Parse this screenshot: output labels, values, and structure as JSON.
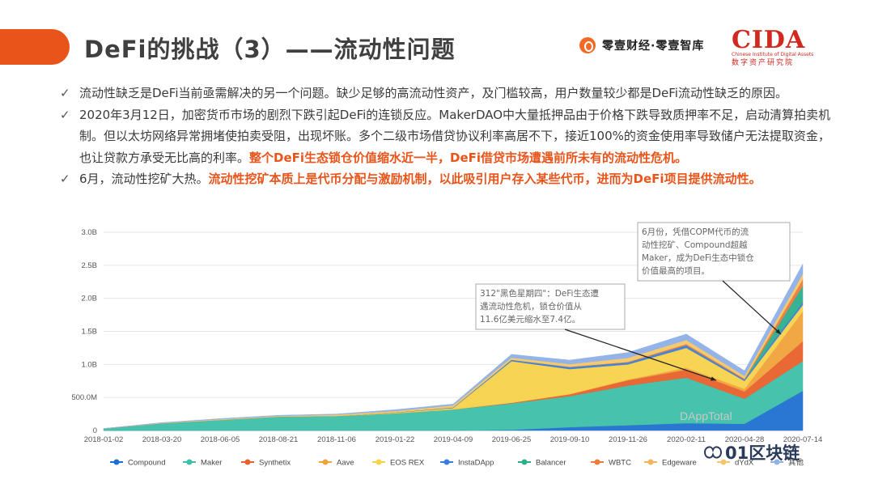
{
  "header": {
    "title": "DeFi的挑战（3）——流动性问题",
    "brand": "零壹财经·零壹智库",
    "cida": {
      "logo": "CIDA",
      "en": "Chinese Institute of Digital Assets",
      "cn": "数字资产研究院"
    }
  },
  "bullets": [
    {
      "mark": "✓",
      "text": "流动性缺乏是DeFi当前亟需解决的另一个问题。缺少足够的高流动性资产，及门槛较高，用户数量较少都是DeFi流动性缺乏的原因。",
      "highlight": ""
    },
    {
      "mark": "✓",
      "text": "2020年3月12日，加密货币市场的剧烈下跌引起DeFi的连锁反应。MakerDAO中大量抵押品由于价格下跌导致质押率不足，启动清算拍卖机制。但以太坊网络异常拥堵使拍卖受阻，出现坏账。多个二级市场借贷协议利率高居不下，接近100%的资金使用率导致储户无法提取资金，也让贷款方承受无比高的利率。",
      "highlight": "整个DeFi生态锁仓价值缩水近一半，DeFi借贷市场遭遇前所未有的流动性危机。"
    },
    {
      "mark": "✓",
      "text": "6月，流动性挖矿大热。",
      "highlight": "流动性挖矿本质上是代币分配与激励机制，以此吸引用户存入某些代币，进而为DeFi项目提供流动性。"
    }
  ],
  "chart_data": {
    "type": "area",
    "stacked": true,
    "x": [
      "2018-01-02",
      "2018-03-20",
      "2018-06-05",
      "2018-08-21",
      "2018-11-06",
      "2019-01-22",
      "2019-04-09",
      "2019-06-25",
      "2019-09-10",
      "2019-11-26",
      "2020-02-11",
      "2020-04-28",
      "2020-07-14"
    ],
    "ytick_labels": [
      "0",
      "500.0M",
      "1.0B",
      "1.5B",
      "2.0B",
      "2.5B",
      "3.0B"
    ],
    "ylim": [
      0,
      3000000000
    ],
    "grid": true,
    "legend_position": "bottom",
    "series": [
      {
        "name": "Compound",
        "color": "#1f6fd1",
        "values": [
          0,
          0,
          0,
          0,
          0,
          0,
          0,
          10000000,
          50000000,
          80000000,
          110000000,
          100000000,
          600000000
        ]
      },
      {
        "name": "Maker",
        "color": "#3ebfa8",
        "values": [
          30000000,
          110000000,
          160000000,
          210000000,
          220000000,
          260000000,
          320000000,
          400000000,
          470000000,
          600000000,
          690000000,
          380000000,
          450000000
        ]
      },
      {
        "name": "Synthetix",
        "color": "#e8622c",
        "values": [
          0,
          0,
          0,
          0,
          0,
          0,
          0,
          10000000,
          30000000,
          80000000,
          120000000,
          110000000,
          300000000
        ]
      },
      {
        "name": "Aave",
        "color": "#f0a33a",
        "values": [
          0,
          0,
          0,
          0,
          0,
          0,
          0,
          0,
          0,
          10000000,
          30000000,
          40000000,
          450000000
        ]
      },
      {
        "name": "EOS REX",
        "color": "#f7d24a",
        "values": [
          0,
          0,
          0,
          0,
          0,
          10000000,
          20000000,
          630000000,
          380000000,
          230000000,
          300000000,
          120000000,
          100000000
        ]
      },
      {
        "name": "InstaDApp",
        "color": "#3b7ddd",
        "values": [
          0,
          0,
          0,
          0,
          0,
          5000000,
          10000000,
          20000000,
          30000000,
          30000000,
          40000000,
          20000000,
          40000000
        ]
      },
      {
        "name": "Balancer",
        "color": "#2fae8e",
        "values": [
          0,
          0,
          0,
          0,
          0,
          0,
          0,
          0,
          0,
          0,
          0,
          0,
          250000000
        ]
      },
      {
        "name": "WBTC",
        "color": "#ee7b3a",
        "values": [
          0,
          0,
          0,
          0,
          0,
          0,
          0,
          2000000,
          5000000,
          10000000,
          20000000,
          15000000,
          100000000
        ]
      },
      {
        "name": "Edgeware",
        "color": "#f6b45c",
        "values": [
          0,
          0,
          0,
          0,
          0,
          0,
          0,
          0,
          0,
          0,
          0,
          0,
          0
        ]
      },
      {
        "name": "dYdX",
        "color": "#f4c86a",
        "values": [
          0,
          5000000,
          10000000,
          10000000,
          20000000,
          20000000,
          30000000,
          30000000,
          40000000,
          60000000,
          60000000,
          40000000,
          80000000
        ]
      },
      {
        "name": "其他",
        "color": "#8fb0e8",
        "values": [
          0,
          5000000,
          10000000,
          10000000,
          10000000,
          20000000,
          20000000,
          50000000,
          60000000,
          80000000,
          90000000,
          80000000,
          150000000
        ]
      }
    ],
    "annotations": [
      {
        "text_lines": [
          "312\"黑色星期四\"：DeFi生态遭",
          "遇流动性危机，锁仓价值从",
          "11.6亿美元缩水至7.4亿。"
        ],
        "points_to": "2020-03-12"
      },
      {
        "text_lines": [
          "6月份，凭借COPM代币的流",
          "动性挖矿、Compound超越",
          "Maker，成为DeFi生态中锁仓",
          "价值最高的项目。"
        ],
        "points_to": "2020-06-16"
      }
    ],
    "watermark": "DAppTotal"
  },
  "watermark_text": "01区块链",
  "colors": {
    "accent": "#e8541a",
    "cida": "#d1281f"
  }
}
